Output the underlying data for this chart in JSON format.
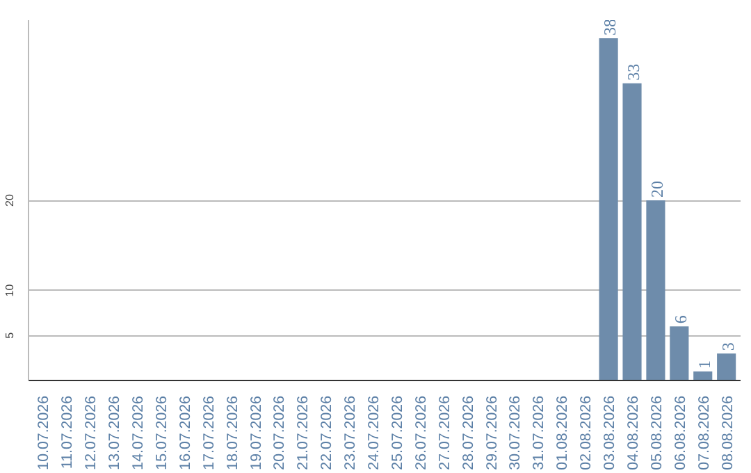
{
  "chart_data": {
    "type": "bar",
    "categories": [
      "10.07.2026",
      "11.07.2026",
      "12.07.2026",
      "13.07.2026",
      "14.07.2026",
      "15.07.2026",
      "16.07.2026",
      "17.07.2026",
      "18.07.2026",
      "19.07.2026",
      "20.07.2026",
      "21.07.2026",
      "22.07.2026",
      "23.07.2026",
      "24.07.2026",
      "25.07.2026",
      "26.07.2026",
      "27.07.2026",
      "28.07.2026",
      "29.07.2026",
      "30.07.2026",
      "31.07.2026",
      "01.08.2026",
      "02.08.2026",
      "03.08.2026",
      "04.08.2026",
      "05.08.2026",
      "06.08.2026",
      "07.08.2026",
      "08.08.2026"
    ],
    "values": [
      0,
      0,
      0,
      0,
      0,
      0,
      0,
      0,
      0,
      0,
      0,
      0,
      0,
      0,
      0,
      0,
      0,
      0,
      0,
      0,
      0,
      0,
      0,
      0,
      38,
      33,
      20,
      6,
      1,
      3
    ],
    "value_labels": [
      null,
      null,
      null,
      null,
      null,
      null,
      null,
      null,
      null,
      null,
      null,
      null,
      null,
      null,
      null,
      null,
      null,
      null,
      null,
      null,
      null,
      null,
      null,
      null,
      "38",
      "33",
      "20",
      "6",
      "1",
      "3"
    ],
    "color": "#6e8cab",
    "ylim": [
      0,
      40
    ],
    "yticks": [
      5,
      10,
      20
    ],
    "grid": "y"
  }
}
